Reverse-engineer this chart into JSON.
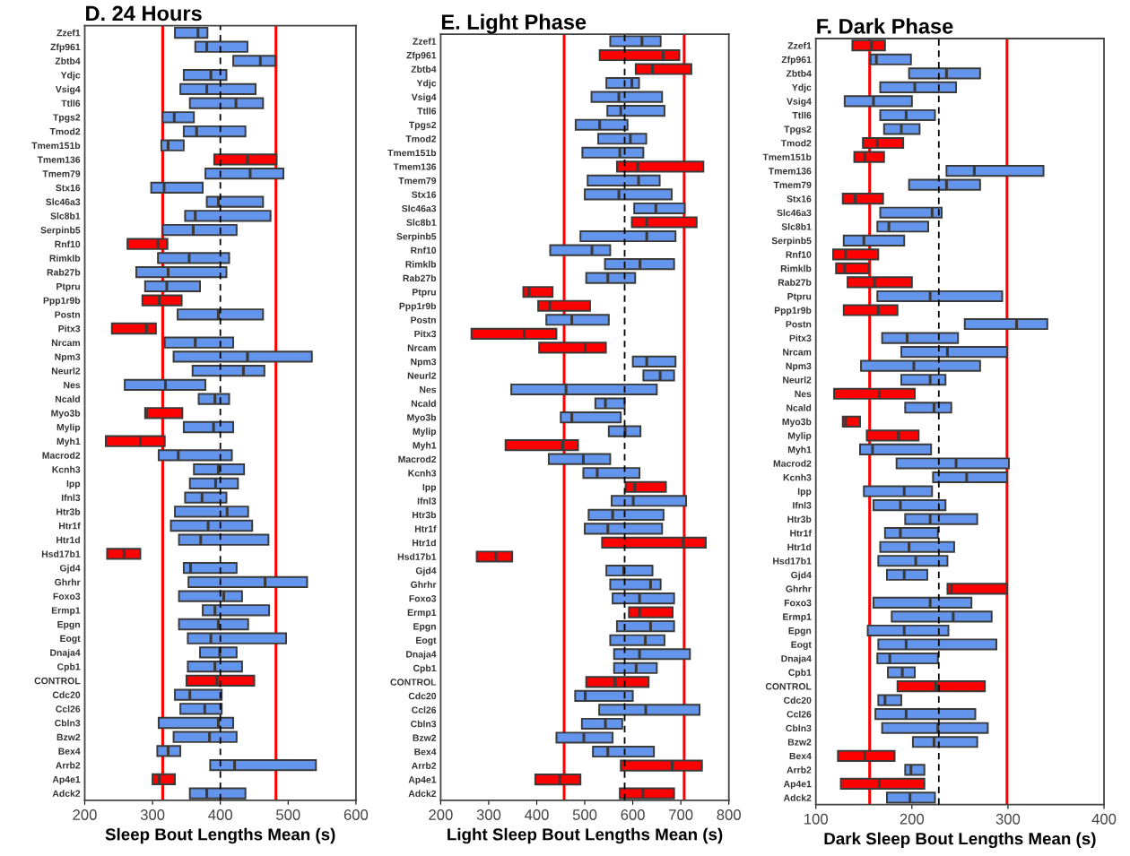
{
  "chart_data": [
    {
      "type": "box",
      "orientation": "horizontal",
      "title": "D. 24 Hours",
      "xlabel": "Sleep Bout Lengths Mean (s)",
      "xlim": [
        200,
        600
      ],
      "xticks": [
        200,
        300,
        400,
        500,
        600
      ],
      "categories": [
        "Zzef1",
        "Zfp961",
        "Zbtb4",
        "Ydjc",
        "Vsig4",
        "Ttll6",
        "Tpgs2",
        "Tmod2",
        "Tmem151b",
        "Tmem136",
        "Tmem79",
        "Stx16",
        "Slc46a3",
        "Slc8b1",
        "Serpinb5",
        "Rnf10",
        "Rimklb",
        "Rab27b",
        "Ptpru",
        "Ppp1r9b",
        "Postn",
        "Pitx3",
        "Nrcam",
        "Npm3",
        "Neurl2",
        "Nes",
        "Ncald",
        "Myo3b",
        "Mylip",
        "Myh1",
        "Macrod2",
        "Kcnh3",
        "Ipp",
        "Ifnl3",
        "Htr3b",
        "Htr1f",
        "Htr1d",
        "Hsd17b1",
        "Gjd4",
        "Ghrhr",
        "Foxo3",
        "Ermp1",
        "Epgn",
        "Eogt",
        "Dnaja4",
        "Cpb1",
        "CONTROL",
        "Cdc20",
        "Ccl26",
        "Cbln3",
        "Bzw2",
        "Bex4",
        "Arrb2",
        "Ap4e1",
        "Adck2"
      ],
      "colors": [
        "#6495ed",
        "#6495ed",
        "#6495ed",
        "#6495ed",
        "#6495ed",
        "#6495ed",
        "#6495ed",
        "#6495ed",
        "#6495ed",
        "#ff0000",
        "#6495ed",
        "#6495ed",
        "#6495ed",
        "#6495ed",
        "#6495ed",
        "#ff0000",
        "#6495ed",
        "#6495ed",
        "#6495ed",
        "#ff0000",
        "#6495ed",
        "#ff0000",
        "#6495ed",
        "#6495ed",
        "#6495ed",
        "#6495ed",
        "#6495ed",
        "#ff0000",
        "#6495ed",
        "#ff0000",
        "#6495ed",
        "#6495ed",
        "#6495ed",
        "#6495ed",
        "#6495ed",
        "#6495ed",
        "#6495ed",
        "#ff0000",
        "#6495ed",
        "#6495ed",
        "#6495ed",
        "#6495ed",
        "#6495ed",
        "#6495ed",
        "#6495ed",
        "#6495ed",
        "#ff0000",
        "#6495ed",
        "#6495ed",
        "#6495ed",
        "#6495ed",
        "#6495ed",
        "#6495ed",
        "#ff0000",
        "#6495ed"
      ],
      "boxes": [
        {
          "low": 333,
          "q1": 333,
          "median": 367,
          "q3": 381,
          "high": 381
        },
        {
          "low": 363,
          "q1": 363,
          "median": 380,
          "q3": 440,
          "high": 440
        },
        {
          "low": 419,
          "q1": 419,
          "median": 459,
          "q3": 481,
          "high": 481
        },
        {
          "low": 346,
          "q1": 346,
          "median": 386,
          "q3": 409,
          "high": 409
        },
        {
          "low": 341,
          "q1": 341,
          "median": 380,
          "q3": 452,
          "high": 452
        },
        {
          "low": 355,
          "q1": 355,
          "median": 423,
          "q3": 463,
          "high": 463
        },
        {
          "low": 315,
          "q1": 315,
          "median": 332,
          "q3": 361,
          "high": 361
        },
        {
          "low": 346,
          "q1": 346,
          "median": 365,
          "q3": 437,
          "high": 437
        },
        {
          "low": 313,
          "q1": 313,
          "median": 323,
          "q3": 346,
          "high": 346
        },
        {
          "low": 391,
          "q1": 391,
          "median": 440,
          "q3": 483,
          "high": 483
        },
        {
          "low": 378,
          "q1": 378,
          "median": 444,
          "q3": 493,
          "high": 493
        },
        {
          "low": 298,
          "q1": 298,
          "median": 317,
          "q3": 374,
          "high": 374
        },
        {
          "low": 380,
          "q1": 380,
          "median": 397,
          "q3": 463,
          "high": 463
        },
        {
          "low": 348,
          "q1": 348,
          "median": 363,
          "q3": 474,
          "high": 474
        },
        {
          "low": 315,
          "q1": 315,
          "median": 360,
          "q3": 424,
          "high": 424
        },
        {
          "low": 263,
          "q1": 263,
          "median": 308,
          "q3": 322,
          "high": 322
        },
        {
          "low": 308,
          "q1": 308,
          "median": 354,
          "q3": 413,
          "high": 413
        },
        {
          "low": 276,
          "q1": 276,
          "median": 323,
          "q3": 409,
          "high": 409
        },
        {
          "low": 289,
          "q1": 289,
          "median": 321,
          "q3": 370,
          "high": 370
        },
        {
          "low": 285,
          "q1": 285,
          "median": 310,
          "q3": 343,
          "high": 343
        },
        {
          "low": 337,
          "q1": 337,
          "median": 397,
          "q3": 463,
          "high": 463
        },
        {
          "low": 240,
          "q1": 240,
          "median": 291,
          "q3": 305,
          "high": 305
        },
        {
          "low": 318,
          "q1": 318,
          "median": 363,
          "q3": 419,
          "high": 419
        },
        {
          "low": 331,
          "q1": 331,
          "median": 440,
          "q3": 535,
          "high": 535
        },
        {
          "low": 359,
          "q1": 359,
          "median": 434,
          "q3": 465,
          "high": 465
        },
        {
          "low": 259,
          "q1": 259,
          "median": 319,
          "q3": 378,
          "high": 378
        },
        {
          "low": 368,
          "q1": 368,
          "median": 392,
          "q3": 413,
          "high": 413
        },
        {
          "low": 289,
          "q1": 289,
          "median": 291,
          "q3": 344,
          "high": 344
        },
        {
          "low": 346,
          "q1": 346,
          "median": 390,
          "q3": 419,
          "high": 419
        },
        {
          "low": 231,
          "q1": 231,
          "median": 282,
          "q3": 318,
          "high": 318
        },
        {
          "low": 309,
          "q1": 309,
          "median": 338,
          "q3": 417,
          "high": 417
        },
        {
          "low": 361,
          "q1": 361,
          "median": 397,
          "q3": 435,
          "high": 435
        },
        {
          "low": 355,
          "q1": 355,
          "median": 393,
          "q3": 426,
          "high": 426
        },
        {
          "low": 348,
          "q1": 348,
          "median": 373,
          "q3": 409,
          "high": 409
        },
        {
          "low": 333,
          "q1": 333,
          "median": 410,
          "q3": 441,
          "high": 441
        },
        {
          "low": 327,
          "q1": 327,
          "median": 382,
          "q3": 447,
          "high": 447
        },
        {
          "low": 339,
          "q1": 339,
          "median": 371,
          "q3": 471,
          "high": 471
        },
        {
          "low": 233,
          "q1": 233,
          "median": 258,
          "q3": 282,
          "high": 282
        },
        {
          "low": 346,
          "q1": 346,
          "median": 356,
          "q3": 424,
          "high": 424
        },
        {
          "low": 353,
          "q1": 353,
          "median": 466,
          "q3": 528,
          "high": 528
        },
        {
          "low": 339,
          "q1": 339,
          "median": 405,
          "q3": 432,
          "high": 432
        },
        {
          "low": 374,
          "q1": 374,
          "median": 392,
          "q3": 472,
          "high": 472
        },
        {
          "low": 339,
          "q1": 339,
          "median": 397,
          "q3": 441,
          "high": 441
        },
        {
          "low": 352,
          "q1": 352,
          "median": 386,
          "q3": 497,
          "high": 497
        },
        {
          "low": 370,
          "q1": 370,
          "median": 399,
          "q3": 424,
          "high": 424
        },
        {
          "low": 352,
          "q1": 352,
          "median": 392,
          "q3": 432,
          "high": 432
        },
        {
          "low": 350,
          "q1": 350,
          "median": 395,
          "q3": 450,
          "high": 450
        },
        {
          "low": 333,
          "q1": 333,
          "median": 355,
          "q3": 402,
          "high": 402
        },
        {
          "low": 341,
          "q1": 341,
          "median": 377,
          "q3": 402,
          "high": 402
        },
        {
          "low": 309,
          "q1": 309,
          "median": 397,
          "q3": 419,
          "high": 419
        },
        {
          "low": 331,
          "q1": 331,
          "median": 384,
          "q3": 424,
          "high": 424
        },
        {
          "low": 307,
          "q1": 307,
          "median": 323,
          "q3": 341,
          "high": 341
        },
        {
          "low": 385,
          "q1": 385,
          "median": 421,
          "q3": 541,
          "high": 541
        },
        {
          "low": 300,
          "q1": 300,
          "median": 310,
          "q3": 333,
          "high": 333
        },
        {
          "low": 355,
          "q1": 355,
          "median": 380,
          "q3": 437,
          "high": 437
        }
      ],
      "ref_lines": [
        {
          "axis": "x",
          "value": 315,
          "color": "#ff0000",
          "line_style": "solid"
        },
        {
          "axis": "x",
          "value": 482,
          "color": "#ff0000",
          "line_style": "solid"
        },
        {
          "axis": "x",
          "value": 400,
          "color": "#000000",
          "line_style": "dashed"
        }
      ]
    },
    {
      "type": "box",
      "orientation": "horizontal",
      "title": "E. Light Phase",
      "xlabel": "Light Sleep Bout Lengths Mean (s)",
      "xlim": [
        200,
        800
      ],
      "xticks": [
        200,
        300,
        400,
        500,
        600,
        700,
        800
      ],
      "categories": [
        "Zzef1",
        "Zfp961",
        "Zbtb4",
        "Ydjc",
        "Vsig4",
        "Ttll6",
        "Tpgs2",
        "Tmod2",
        "Tmem151b",
        "Tmem136",
        "Tmem79",
        "Stx16",
        "Slc46a3",
        "Slc8b1",
        "Serpinb5",
        "Rnf10",
        "Rimklb",
        "Rab27b",
        "Ptpru",
        "Ppp1r9b",
        "Postn",
        "Pitx3",
        "Nrcam",
        "Npm3",
        "Neurl2",
        "Nes",
        "Ncald",
        "Myo3b",
        "Mylip",
        "Myh1",
        "Macrod2",
        "Kcnh3",
        "Ipp",
        "Ifnl3",
        "Htr3b",
        "Htr1f",
        "Htr1d",
        "Hsd17b1",
        "Gjd4",
        "Ghrhr",
        "Foxo3",
        "Ermp1",
        "Epgn",
        "Eogt",
        "Dnaja4",
        "Cpb1",
        "CONTROL",
        "Cdc20",
        "Ccl26",
        "Cbln3",
        "Bzw2",
        "Bex4",
        "Arrb2",
        "Ap4e1",
        "Adck2"
      ],
      "colors": [
        "#6495ed",
        "#ff0000",
        "#ff0000",
        "#6495ed",
        "#6495ed",
        "#6495ed",
        "#6495ed",
        "#6495ed",
        "#6495ed",
        "#ff0000",
        "#6495ed",
        "#6495ed",
        "#6495ed",
        "#ff0000",
        "#6495ed",
        "#6495ed",
        "#6495ed",
        "#6495ed",
        "#ff0000",
        "#ff0000",
        "#6495ed",
        "#ff0000",
        "#ff0000",
        "#6495ed",
        "#6495ed",
        "#6495ed",
        "#6495ed",
        "#6495ed",
        "#6495ed",
        "#ff0000",
        "#6495ed",
        "#6495ed",
        "#ff0000",
        "#6495ed",
        "#6495ed",
        "#6495ed",
        "#ff0000",
        "#ff0000",
        "#6495ed",
        "#6495ed",
        "#6495ed",
        "#ff0000",
        "#6495ed",
        "#6495ed",
        "#6495ed",
        "#6495ed",
        "#ff0000",
        "#6495ed",
        "#6495ed",
        "#6495ed",
        "#6495ed",
        "#6495ed",
        "#ff0000",
        "#ff0000",
        "#ff0000"
      ],
      "boxes": [
        {
          "low": 553,
          "q1": 553,
          "median": 619,
          "q3": 658,
          "high": 658
        },
        {
          "low": 531,
          "q1": 531,
          "median": 663,
          "q3": 697,
          "high": 697
        },
        {
          "low": 606,
          "q1": 606,
          "median": 641,
          "q3": 722,
          "high": 722
        },
        {
          "low": 545,
          "q1": 545,
          "median": 598,
          "q3": 613,
          "high": 613
        },
        {
          "low": 514,
          "q1": 514,
          "median": 571,
          "q3": 661,
          "high": 661
        },
        {
          "low": 547,
          "q1": 547,
          "median": 575,
          "q3": 666,
          "high": 666
        },
        {
          "low": 481,
          "q1": 481,
          "median": 531,
          "q3": 589,
          "high": 589
        },
        {
          "low": 528,
          "q1": 528,
          "median": 595,
          "q3": 628,
          "high": 628
        },
        {
          "low": 495,
          "q1": 495,
          "median": 573,
          "q3": 622,
          "high": 622
        },
        {
          "low": 567,
          "q1": 567,
          "median": 610,
          "q3": 747,
          "high": 747
        },
        {
          "low": 506,
          "q1": 506,
          "median": 612,
          "q3": 656,
          "high": 656
        },
        {
          "low": 500,
          "q1": 500,
          "median": 571,
          "q3": 681,
          "high": 681
        },
        {
          "low": 603,
          "q1": 603,
          "median": 648,
          "q3": 708,
          "high": 708
        },
        {
          "low": 598,
          "q1": 598,
          "median": 629,
          "q3": 733,
          "high": 733
        },
        {
          "low": 491,
          "q1": 491,
          "median": 629,
          "q3": 689,
          "high": 689
        },
        {
          "low": 428,
          "q1": 428,
          "median": 515,
          "q3": 553,
          "high": 553
        },
        {
          "low": 542,
          "q1": 542,
          "median": 615,
          "q3": 686,
          "high": 686
        },
        {
          "low": 503,
          "q1": 503,
          "median": 548,
          "q3": 605,
          "high": 605
        },
        {
          "low": 372,
          "q1": 372,
          "median": 384,
          "q3": 433,
          "high": 433
        },
        {
          "low": 403,
          "q1": 403,
          "median": 427,
          "q3": 511,
          "high": 511
        },
        {
          "low": 420,
          "q1": 420,
          "median": 473,
          "q3": 550,
          "high": 550
        },
        {
          "low": 264,
          "q1": 264,
          "median": 374,
          "q3": 441,
          "high": 441
        },
        {
          "low": 405,
          "q1": 405,
          "median": 501,
          "q3": 544,
          "high": 544
        },
        {
          "low": 600,
          "q1": 600,
          "median": 629,
          "q3": 689,
          "high": 689
        },
        {
          "low": 622,
          "q1": 622,
          "median": 657,
          "q3": 686,
          "high": 686
        },
        {
          "low": 347,
          "q1": 347,
          "median": 461,
          "q3": 650,
          "high": 650
        },
        {
          "low": 522,
          "q1": 522,
          "median": 543,
          "q3": 583,
          "high": 583
        },
        {
          "low": 450,
          "q1": 450,
          "median": 473,
          "q3": 575,
          "high": 575
        },
        {
          "low": 550,
          "q1": 550,
          "median": 584,
          "q3": 616,
          "high": 616
        },
        {
          "low": 335,
          "q1": 335,
          "median": 454,
          "q3": 486,
          "high": 486
        },
        {
          "low": 425,
          "q1": 425,
          "median": 497,
          "q3": 553,
          "high": 553
        },
        {
          "low": 497,
          "q1": 497,
          "median": 526,
          "q3": 614,
          "high": 614
        },
        {
          "low": 585,
          "q1": 585,
          "median": 604,
          "q3": 669,
          "high": 669
        },
        {
          "low": 556,
          "q1": 556,
          "median": 601,
          "q3": 711,
          "high": 711
        },
        {
          "low": 508,
          "q1": 508,
          "median": 558,
          "q3": 664,
          "high": 664
        },
        {
          "low": 500,
          "q1": 500,
          "median": 548,
          "q3": 661,
          "high": 661
        },
        {
          "low": 536,
          "q1": 536,
          "median": 705,
          "q3": 752,
          "high": 752
        },
        {
          "low": 275,
          "q1": 275,
          "median": 315,
          "q3": 349,
          "high": 349
        },
        {
          "low": 545,
          "q1": 545,
          "median": 581,
          "q3": 641,
          "high": 641
        },
        {
          "low": 553,
          "q1": 553,
          "median": 637,
          "q3": 658,
          "high": 658
        },
        {
          "low": 558,
          "q1": 558,
          "median": 614,
          "q3": 686,
          "high": 686
        },
        {
          "low": 592,
          "q1": 592,
          "median": 614,
          "q3": 683,
          "high": 683
        },
        {
          "low": 567,
          "q1": 567,
          "median": 637,
          "q3": 686,
          "high": 686
        },
        {
          "low": 553,
          "q1": 553,
          "median": 626,
          "q3": 666,
          "high": 666
        },
        {
          "low": 561,
          "q1": 561,
          "median": 614,
          "q3": 719,
          "high": 719
        },
        {
          "low": 561,
          "q1": 561,
          "median": 607,
          "q3": 650,
          "high": 650
        },
        {
          "low": 503,
          "q1": 503,
          "median": 563,
          "q3": 633,
          "high": 633
        },
        {
          "low": 480,
          "q1": 480,
          "median": 501,
          "q3": 600,
          "high": 600
        },
        {
          "low": 530,
          "q1": 530,
          "median": 627,
          "q3": 739,
          "high": 739
        },
        {
          "low": 494,
          "q1": 494,
          "median": 543,
          "q3": 578,
          "high": 578
        },
        {
          "low": 441,
          "q1": 441,
          "median": 498,
          "q3": 558,
          "high": 558
        },
        {
          "low": 517,
          "q1": 517,
          "median": 548,
          "q3": 644,
          "high": 644
        },
        {
          "low": 575,
          "q1": 575,
          "median": 682,
          "q3": 744,
          "high": 744
        },
        {
          "low": 397,
          "q1": 397,
          "median": 448,
          "q3": 491,
          "high": 491
        },
        {
          "low": 573,
          "q1": 573,
          "median": 621,
          "q3": 686,
          "high": 686
        }
      ],
      "ref_lines": [
        {
          "axis": "x",
          "value": 457,
          "color": "#ff0000",
          "line_style": "solid"
        },
        {
          "axis": "x",
          "value": 707,
          "color": "#ff0000",
          "line_style": "solid"
        },
        {
          "axis": "x",
          "value": 583,
          "color": "#000000",
          "line_style": "dashed"
        }
      ]
    },
    {
      "type": "box",
      "orientation": "horizontal",
      "title": "F. Dark Phase",
      "xlabel": "Dark Sleep Bout Lengths Mean (s)",
      "xlim": [
        100,
        400
      ],
      "xticks": [
        100,
        200,
        300,
        400
      ],
      "categories": [
        "Zzef1",
        "Zfp961",
        "Zbtb4",
        "Ydjc",
        "Vsig4",
        "Ttll6",
        "Tpgs2",
        "Tmod2",
        "Tmem151b",
        "Tmem136",
        "Tmem79",
        "Stx16",
        "Slc46a3",
        "Slc8b1",
        "Serpinb5",
        "Rnf10",
        "Rimklb",
        "Rab27b",
        "Ptpru",
        "Ppp1r9b",
        "Postn",
        "Pitx3",
        "Nrcam",
        "Npm3",
        "Neurl2",
        "Nes",
        "Ncald",
        "Myo3b",
        "Mylip",
        "Myh1",
        "Macrod2",
        "Kcnh3",
        "Ipp",
        "Ifnl3",
        "Htr3b",
        "Htr1f",
        "Htr1d",
        "Hsd17b1",
        "Gjd4",
        "Ghrhr",
        "Foxo3",
        "Ermp1",
        "Epgn",
        "Eogt",
        "Dnaja4",
        "Cpb1",
        "CONTROL",
        "Cdc20",
        "Ccl26",
        "Cbln3",
        "Bzw2",
        "Bex4",
        "Arrb2",
        "Ap4e1",
        "Adck2"
      ],
      "colors": [
        "#ff0000",
        "#6495ed",
        "#6495ed",
        "#6495ed",
        "#6495ed",
        "#6495ed",
        "#6495ed",
        "#ff0000",
        "#ff0000",
        "#6495ed",
        "#6495ed",
        "#ff0000",
        "#6495ed",
        "#6495ed",
        "#6495ed",
        "#ff0000",
        "#ff0000",
        "#ff0000",
        "#6495ed",
        "#ff0000",
        "#6495ed",
        "#6495ed",
        "#6495ed",
        "#6495ed",
        "#6495ed",
        "#ff0000",
        "#6495ed",
        "#ff0000",
        "#ff0000",
        "#6495ed",
        "#6495ed",
        "#6495ed",
        "#6495ed",
        "#6495ed",
        "#6495ed",
        "#6495ed",
        "#6495ed",
        "#6495ed",
        "#6495ed",
        "#ff0000",
        "#6495ed",
        "#6495ed",
        "#6495ed",
        "#6495ed",
        "#6495ed",
        "#6495ed",
        "#ff0000",
        "#6495ed",
        "#6495ed",
        "#6495ed",
        "#6495ed",
        "#ff0000",
        "#6495ed",
        "#ff0000",
        "#6495ed"
      ],
      "boxes": [
        {
          "low": 138,
          "q1": 138,
          "median": 158,
          "q3": 172,
          "high": 172
        },
        {
          "low": 157,
          "q1": 157,
          "median": 163,
          "q3": 199,
          "high": 199
        },
        {
          "low": 197,
          "q1": 197,
          "median": 236,
          "q3": 271,
          "high": 271
        },
        {
          "low": 167,
          "q1": 167,
          "median": 203,
          "q3": 246,
          "high": 246
        },
        {
          "low": 130,
          "q1": 130,
          "median": 160,
          "q3": 200,
          "high": 200
        },
        {
          "low": 167,
          "q1": 167,
          "median": 194,
          "q3": 224,
          "high": 224
        },
        {
          "low": 171,
          "q1": 171,
          "median": 189,
          "q3": 208,
          "high": 208
        },
        {
          "low": 149,
          "q1": 149,
          "median": 164,
          "q3": 191,
          "high": 191
        },
        {
          "low": 140,
          "q1": 140,
          "median": 151,
          "q3": 171,
          "high": 171
        },
        {
          "low": 236,
          "q1": 236,
          "median": 265,
          "q3": 337,
          "high": 337
        },
        {
          "low": 197,
          "q1": 197,
          "median": 236,
          "q3": 271,
          "high": 271
        },
        {
          "low": 128,
          "q1": 128,
          "median": 141,
          "q3": 170,
          "high": 170
        },
        {
          "low": 167,
          "q1": 167,
          "median": 221,
          "q3": 231,
          "high": 231
        },
        {
          "low": 164,
          "q1": 164,
          "median": 176,
          "q3": 217,
          "high": 217
        },
        {
          "low": 129,
          "q1": 129,
          "median": 150,
          "q3": 192,
          "high": 192
        },
        {
          "low": 118,
          "q1": 118,
          "median": 131,
          "q3": 165,
          "high": 165
        },
        {
          "low": 121,
          "q1": 121,
          "median": 130,
          "q3": 155,
          "high": 155
        },
        {
          "low": 133,
          "q1": 133,
          "median": 161,
          "q3": 200,
          "high": 200
        },
        {
          "low": 164,
          "q1": 164,
          "median": 219,
          "q3": 294,
          "high": 294
        },
        {
          "low": 129,
          "q1": 129,
          "median": 165,
          "q3": 185,
          "high": 185
        },
        {
          "low": 255,
          "q1": 255,
          "median": 309,
          "q3": 341,
          "high": 341
        },
        {
          "low": 169,
          "q1": 169,
          "median": 195,
          "q3": 248,
          "high": 248
        },
        {
          "low": 189,
          "q1": 189,
          "median": 237,
          "q3": 299,
          "high": 299
        },
        {
          "low": 147,
          "q1": 147,
          "median": 202,
          "q3": 271,
          "high": 271
        },
        {
          "low": 189,
          "q1": 189,
          "median": 219,
          "q3": 235,
          "high": 235
        },
        {
          "low": 119,
          "q1": 119,
          "median": 166,
          "q3": 203,
          "high": 203
        },
        {
          "low": 193,
          "q1": 193,
          "median": 223,
          "q3": 241,
          "high": 241
        },
        {
          "low": 128,
          "q1": 128,
          "median": 131,
          "q3": 146,
          "high": 146
        },
        {
          "low": 153,
          "q1": 153,
          "median": 186,
          "q3": 207,
          "high": 207
        },
        {
          "low": 146,
          "q1": 146,
          "median": 159,
          "q3": 220,
          "high": 220
        },
        {
          "low": 184,
          "q1": 184,
          "median": 246,
          "q3": 301,
          "high": 301
        },
        {
          "low": 222,
          "q1": 222,
          "median": 257,
          "q3": 299,
          "high": 299
        },
        {
          "low": 150,
          "q1": 150,
          "median": 192,
          "q3": 221,
          "high": 221
        },
        {
          "low": 160,
          "q1": 160,
          "median": 188,
          "q3": 235,
          "high": 235
        },
        {
          "low": 193,
          "q1": 193,
          "median": 219,
          "q3": 268,
          "high": 268
        },
        {
          "low": 172,
          "q1": 172,
          "median": 188,
          "q3": 227,
          "high": 227
        },
        {
          "low": 167,
          "q1": 167,
          "median": 197,
          "q3": 244,
          "high": 244
        },
        {
          "low": 165,
          "q1": 165,
          "median": 204,
          "q3": 237,
          "high": 237
        },
        {
          "low": 174,
          "q1": 174,
          "median": 192,
          "q3": 216,
          "high": 216
        },
        {
          "low": 237,
          "q1": 237,
          "median": 241,
          "q3": 299,
          "high": 299
        },
        {
          "low": 160,
          "q1": 160,
          "median": 219,
          "q3": 262,
          "high": 262
        },
        {
          "low": 179,
          "q1": 179,
          "median": 243,
          "q3": 283,
          "high": 283
        },
        {
          "low": 154,
          "q1": 154,
          "median": 192,
          "q3": 238,
          "high": 238
        },
        {
          "low": 165,
          "q1": 165,
          "median": 194,
          "q3": 288,
          "high": 288
        },
        {
          "low": 164,
          "q1": 164,
          "median": 177,
          "q3": 227,
          "high": 227
        },
        {
          "low": 175,
          "q1": 175,
          "median": 190,
          "q3": 203,
          "high": 203
        },
        {
          "low": 185,
          "q1": 185,
          "median": 225,
          "q3": 276,
          "high": 276
        },
        {
          "low": 165,
          "q1": 165,
          "median": 172,
          "q3": 189,
          "high": 189
        },
        {
          "low": 162,
          "q1": 162,
          "median": 194,
          "q3": 266,
          "high": 266
        },
        {
          "low": 169,
          "q1": 169,
          "median": 227,
          "q3": 279,
          "high": 279
        },
        {
          "low": 201,
          "q1": 201,
          "median": 223,
          "q3": 268,
          "high": 268
        },
        {
          "low": 123,
          "q1": 123,
          "median": 151,
          "q3": 182,
          "high": 182
        },
        {
          "low": 193,
          "q1": 193,
          "median": 199,
          "q3": 213,
          "high": 213
        },
        {
          "low": 126,
          "q1": 126,
          "median": 166,
          "q3": 213,
          "high": 213
        },
        {
          "low": 174,
          "q1": 174,
          "median": 198,
          "q3": 224,
          "high": 224
        }
      ],
      "ref_lines": [
        {
          "axis": "x",
          "value": 156,
          "color": "#ff0000",
          "line_style": "solid"
        },
        {
          "axis": "x",
          "value": 299,
          "color": "#ff0000",
          "line_style": "solid"
        },
        {
          "axis": "x",
          "value": 228,
          "color": "#000000",
          "line_style": "dashed"
        }
      ]
    }
  ]
}
